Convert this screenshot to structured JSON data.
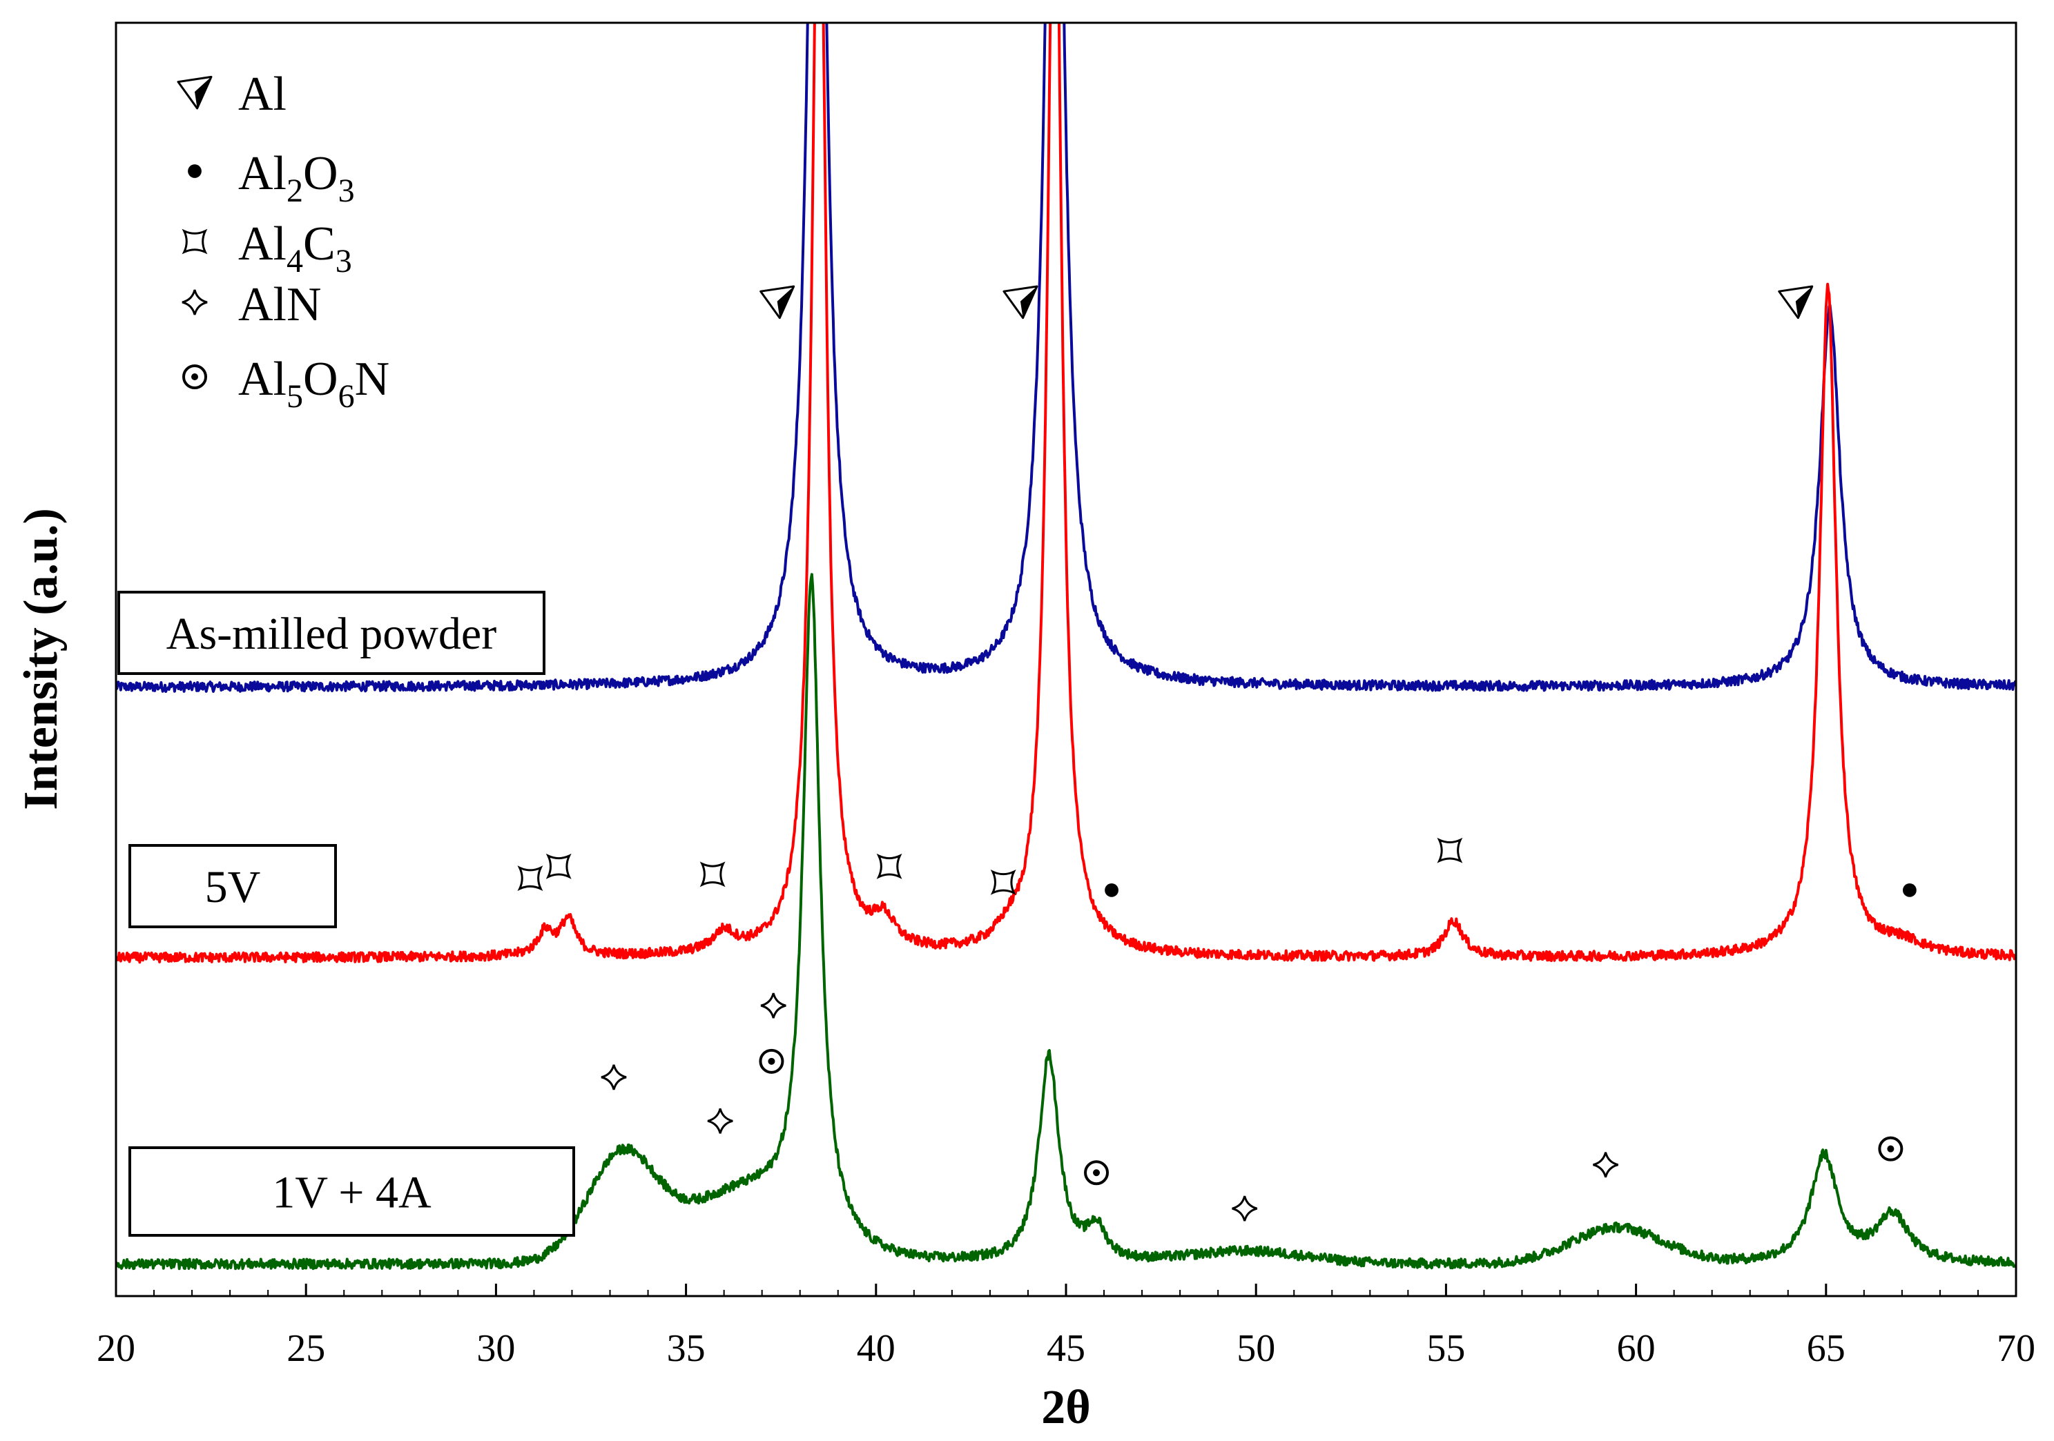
{
  "chart_data": {
    "type": "line",
    "title": "",
    "xlabel": "2θ",
    "ylabel": "Intensity (a.u.)",
    "xlim": [
      20,
      70
    ],
    "ylim": [
      0,
      3.2
    ],
    "xticks": [
      20,
      25,
      30,
      35,
      40,
      45,
      50,
      55,
      60,
      65,
      70
    ],
    "grid": false,
    "legend": {
      "position": "top-left",
      "entries": [
        {
          "marker": "arrowhead",
          "text": "Al"
        },
        {
          "marker": "filled-circle",
          "text": "Al",
          "sub1": "2",
          "mid": "O",
          "sub2": "3",
          "tail": ""
        },
        {
          "marker": "square-star",
          "text": "Al",
          "sub1": "4",
          "mid": "C",
          "sub2": "3",
          "tail": ""
        },
        {
          "marker": "four-point-star",
          "text": "AlN"
        },
        {
          "marker": "dot-circle",
          "text": "Al",
          "sub1": "5",
          "mid": "O",
          "sub2": "6",
          "tail": "N"
        }
      ]
    },
    "series": [
      {
        "name": "As-milled powder",
        "color": "#0a0a9a",
        "baseline": 1.53,
        "peaks": [
          {
            "x": 38.45,
            "height": 3.0,
            "width": 0.28
          },
          {
            "x": 44.7,
            "height": 3.0,
            "width": 0.28
          },
          {
            "x": 65.1,
            "height": 0.95,
            "width": 0.32
          }
        ],
        "broad": [],
        "noise": 0.012
      },
      {
        "name": "5V",
        "color": "#ff0000",
        "baseline": 0.85,
        "peaks": [
          {
            "x": 38.5,
            "height": 3.0,
            "width": 0.22
          },
          {
            "x": 44.7,
            "height": 3.0,
            "width": 0.22
          },
          {
            "x": 65.05,
            "height": 1.68,
            "width": 0.26
          },
          {
            "x": 31.3,
            "height": 0.06,
            "width": 0.25
          },
          {
            "x": 31.9,
            "height": 0.09,
            "width": 0.25
          },
          {
            "x": 36.0,
            "height": 0.05,
            "width": 0.35
          },
          {
            "x": 40.2,
            "height": 0.07,
            "width": 0.35
          },
          {
            "x": 43.5,
            "height": 0.03,
            "width": 0.4
          },
          {
            "x": 55.2,
            "height": 0.09,
            "width": 0.3
          },
          {
            "x": 67.0,
            "height": 0.03,
            "width": 0.7
          }
        ],
        "broad": [],
        "noise": 0.012
      },
      {
        "name": "1V + 4A",
        "color": "#006400",
        "baseline": 0.08,
        "peaks": [
          {
            "x": 38.3,
            "height": 1.64,
            "width": 0.27
          },
          {
            "x": 44.55,
            "height": 0.52,
            "width": 0.32
          },
          {
            "x": 64.95,
            "height": 0.27,
            "width": 0.42
          },
          {
            "x": 45.8,
            "height": 0.08,
            "width": 0.3
          },
          {
            "x": 66.75,
            "height": 0.12,
            "width": 0.5
          }
        ],
        "broad": [
          {
            "x": 33.3,
            "height": 0.26,
            "width": 0.9
          },
          {
            "x": 36.5,
            "height": 0.17,
            "width": 1.6
          },
          {
            "x": 59.5,
            "height": 0.09,
            "width": 1.2
          },
          {
            "x": 49.8,
            "height": 0.03,
            "width": 1.5
          }
        ],
        "noise": 0.012
      }
    ],
    "sample_boxes": [
      {
        "text": "As-milled powder",
        "series": 0
      },
      {
        "text": "5V",
        "series": 1
      },
      {
        "text": "1V + 4A",
        "series": 2
      }
    ],
    "annotations": [
      {
        "marker": "arrowhead",
        "x": 37.4,
        "y": 2.5
      },
      {
        "marker": "arrowhead",
        "x": 43.8,
        "y": 2.5
      },
      {
        "marker": "arrowhead",
        "x": 64.2,
        "y": 2.5
      },
      {
        "marker": "square-star",
        "x": 30.9,
        "y": 1.05
      },
      {
        "marker": "square-star",
        "x": 31.65,
        "y": 1.08
      },
      {
        "marker": "square-star",
        "x": 35.7,
        "y": 1.06
      },
      {
        "marker": "square-star",
        "x": 40.35,
        "y": 1.08
      },
      {
        "marker": "square-star",
        "x": 43.35,
        "y": 1.04
      },
      {
        "marker": "square-star",
        "x": 55.1,
        "y": 1.12
      },
      {
        "marker": "filled-circle",
        "x": 46.2,
        "y": 1.02
      },
      {
        "marker": "filled-circle",
        "x": 67.2,
        "y": 1.02
      },
      {
        "marker": "four-point-star",
        "x": 37.3,
        "y": 0.73
      },
      {
        "marker": "four-point-star",
        "x": 33.1,
        "y": 0.55
      },
      {
        "marker": "four-point-star",
        "x": 35.9,
        "y": 0.44
      },
      {
        "marker": "four-point-star",
        "x": 49.7,
        "y": 0.22
      },
      {
        "marker": "four-point-star",
        "x": 59.2,
        "y": 0.33
      },
      {
        "marker": "dot-circle",
        "x": 37.25,
        "y": 0.59
      },
      {
        "marker": "dot-circle",
        "x": 45.8,
        "y": 0.31
      },
      {
        "marker": "dot-circle",
        "x": 66.7,
        "y": 0.37
      }
    ]
  }
}
